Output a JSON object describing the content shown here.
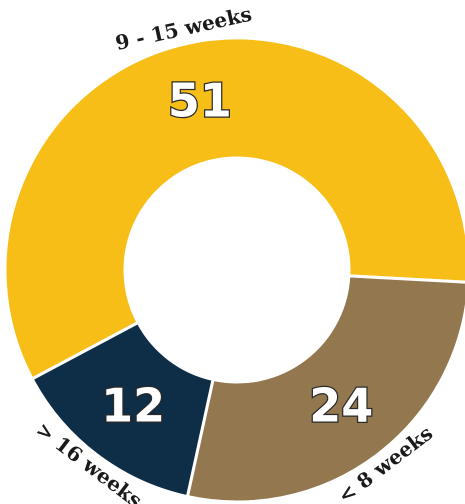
{
  "chart_data": {
    "type": "donut",
    "categories": [
      "9 - 15 weeks",
      "< 8 weeks",
      "> 16 weeks"
    ],
    "values": [
      51,
      24,
      12
    ],
    "colors": [
      "#f6be17",
      "#93774f",
      "#0e2d47"
    ]
  }
}
